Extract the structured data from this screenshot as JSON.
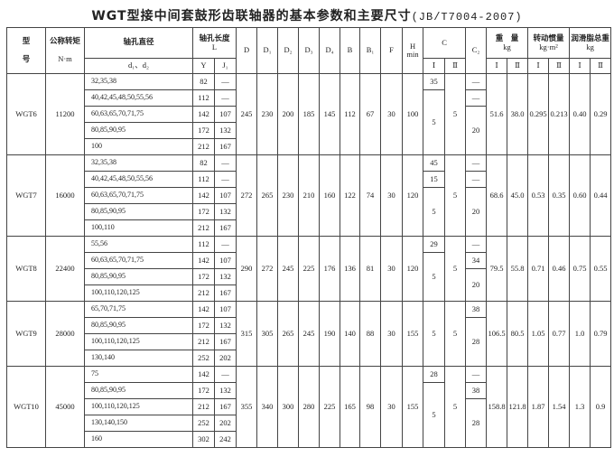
{
  "title": {
    "main": "WGT型接中间套鼓形齿联轴器的基本参数和主要尺寸",
    "standard": "(JB/T7004-2007)"
  },
  "headers": {
    "model": "型号",
    "model_top": "型",
    "model_bottom": "号",
    "torque": "公称转矩",
    "torque_unit": "N·m",
    "bore": "轴孔直径",
    "bore_sub": "d₁、d₂",
    "length": "轴孔长度",
    "length_unit": "L",
    "Y": "Y",
    "J1": "J₁",
    "D": "D",
    "D1": "D₁",
    "D2": "D₂",
    "D3": "D₃",
    "D4": "D₄",
    "B": "B",
    "B1": "B₁",
    "F": "F",
    "H": "H",
    "H_sub": "min",
    "C": "C",
    "C2": "C₂",
    "I": "Ⅰ",
    "II": "Ⅱ",
    "weight": "重　量",
    "weight_unit": "kg",
    "inertia": "转动惯量",
    "inertia_unit": "kg·m²",
    "grease": "润滑脂总重",
    "grease_unit": "kg"
  },
  "groups": [
    {
      "model": "WGT6",
      "torque": "11200",
      "rows": [
        [
          "32,35,38",
          "82",
          "—"
        ],
        [
          "40,42,45,48,50,55,56",
          "112",
          "—"
        ],
        [
          "60,63,65,70,71,75",
          "142",
          "107"
        ],
        [
          "80,85,90,95",
          "172",
          "132"
        ],
        [
          "100",
          "212",
          "167"
        ]
      ],
      "D": "245",
      "D1": "230",
      "D2": "200",
      "D3": "185",
      "D4": "145",
      "B": "112",
      "B1": "67",
      "F": "30",
      "H": "100",
      "C_I": [
        [
          "35",
          1
        ],
        [
          "5",
          4
        ]
      ],
      "C_II": "5",
      "C2": [
        [
          "—",
          1
        ],
        [
          "—",
          1
        ],
        [
          "20",
          3
        ]
      ],
      "weight_I": "51.6",
      "weight_II": "38.0",
      "inertia_I": "0.295",
      "inertia_II": "0.213",
      "grease_I": "0.40",
      "grease_II": "0.29"
    },
    {
      "model": "WGT7",
      "torque": "16000",
      "rows": [
        [
          "32,35,38",
          "82",
          "—"
        ],
        [
          "40,42,45,48,50,55,56",
          "112",
          "—"
        ],
        [
          "60,63,65,70,71,75",
          "142",
          "107"
        ],
        [
          "80,85,90,95",
          "172",
          "132"
        ],
        [
          "100,110",
          "212",
          "167"
        ]
      ],
      "D": "272",
      "D1": "265",
      "D2": "230",
      "D3": "210",
      "D4": "160",
      "B": "122",
      "B1": "74",
      "F": "30",
      "H": "120",
      "C_I": [
        [
          "45",
          1
        ],
        [
          "15",
          1
        ],
        [
          "5",
          3
        ]
      ],
      "C_II": "5",
      "C2": [
        [
          "—",
          1
        ],
        [
          "—",
          1
        ],
        [
          "20",
          3
        ]
      ],
      "weight_I": "68.6",
      "weight_II": "45.0",
      "inertia_I": "0.53",
      "inertia_II": "0.35",
      "grease_I": "0.60",
      "grease_II": "0.44"
    },
    {
      "model": "WGT8",
      "torque": "22400",
      "rows": [
        [
          "55,56",
          "112",
          "—"
        ],
        [
          "60,63,65,70,71,75",
          "142",
          "107"
        ],
        [
          "80,85,90,95",
          "172",
          "132"
        ],
        [
          "100,110,120,125",
          "212",
          "167"
        ]
      ],
      "D": "290",
      "D1": "272",
      "D2": "245",
      "D3": "225",
      "D4": "176",
      "B": "136",
      "B1": "81",
      "F": "30",
      "H": "120",
      "C_I": [
        [
          "29",
          1
        ],
        [
          "5",
          3
        ]
      ],
      "C_II": "5",
      "C2": [
        [
          "—",
          1
        ],
        [
          "34",
          1
        ],
        [
          "20",
          2
        ]
      ],
      "weight_I": "79.5",
      "weight_II": "55.8",
      "inertia_I": "0.71",
      "inertia_II": "0.46",
      "grease_I": "0.75",
      "grease_II": "0.55"
    },
    {
      "model": "WGT9",
      "torque": "28000",
      "rows": [
        [
          "65,70,71,75",
          "142",
          "107"
        ],
        [
          "80,85,90,95",
          "172",
          "132"
        ],
        [
          "100,110,120,125",
          "212",
          "167"
        ],
        [
          "130,140",
          "252",
          "202"
        ]
      ],
      "D": "315",
      "D1": "305",
      "D2": "265",
      "D3": "245",
      "D4": "190",
      "B": "140",
      "B1": "88",
      "F": "30",
      "H": "155",
      "C_I": [
        [
          "5",
          4
        ]
      ],
      "C_II": "5",
      "C2": [
        [
          "38",
          1
        ],
        [
          "28",
          3
        ]
      ],
      "weight_I": "106.5",
      "weight_II": "80.5",
      "inertia_I": "1.05",
      "inertia_II": "0.77",
      "grease_I": "1.0",
      "grease_II": "0.79"
    },
    {
      "model": "WGT10",
      "torque": "45000",
      "rows": [
        [
          "75",
          "142",
          "—"
        ],
        [
          "80,85,90,95",
          "172",
          "132"
        ],
        [
          "100,110,120,125",
          "212",
          "167"
        ],
        [
          "130,140,150",
          "252",
          "202"
        ],
        [
          "160",
          "302",
          "242"
        ]
      ],
      "D": "355",
      "D1": "340",
      "D2": "300",
      "D3": "280",
      "D4": "225",
      "B": "165",
      "B1": "98",
      "F": "30",
      "H": "155",
      "C_I": [
        [
          "28",
          1
        ],
        [
          "5",
          4
        ]
      ],
      "C_II": "5",
      "C2": [
        [
          "—",
          1
        ],
        [
          "38",
          1
        ],
        [
          "28",
          3
        ]
      ],
      "weight_I": "158.8",
      "weight_II": "121.8",
      "inertia_I": "1.87",
      "inertia_II": "1.54",
      "grease_I": "1.3",
      "grease_II": "0.9"
    }
  ]
}
